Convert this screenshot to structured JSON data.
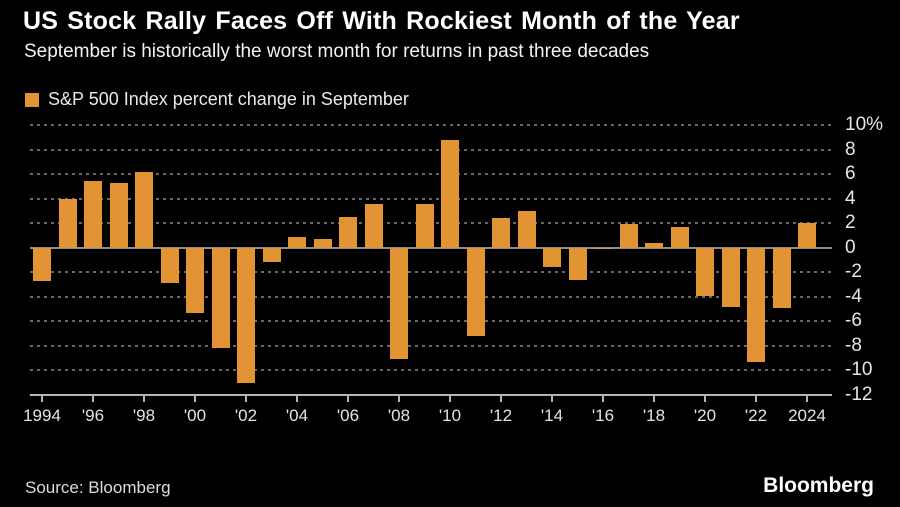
{
  "header": {
    "title": "US Stock Rally Faces Off With Rockiest Month of the Year",
    "subtitle": "September is historically the worst month for returns in past three decades"
  },
  "legend": {
    "label": "S&P 500 Index percent change in September"
  },
  "chart_data": {
    "type": "bar",
    "title": "S&P 500 Index percent change in September",
    "x": [
      1994,
      1995,
      1996,
      1997,
      1998,
      1999,
      2000,
      2001,
      2002,
      2003,
      2004,
      2005,
      2006,
      2007,
      2008,
      2009,
      2010,
      2011,
      2012,
      2013,
      2014,
      2015,
      2016,
      2017,
      2018,
      2019,
      2020,
      2021,
      2022,
      2023,
      2024
    ],
    "values": [
      -2.7,
      4.0,
      5.4,
      5.3,
      6.2,
      -2.9,
      -5.3,
      -8.2,
      -11.0,
      -1.2,
      0.9,
      0.7,
      2.5,
      3.6,
      -9.1,
      3.6,
      8.8,
      -7.2,
      2.4,
      3.0,
      -1.6,
      -2.6,
      -0.1,
      1.9,
      0.4,
      1.7,
      -3.9,
      -4.8,
      -9.3,
      -4.9,
      2.0
    ],
    "ylabel": "percent",
    "ylim": [
      -12,
      10
    ],
    "ytick_values": [
      10,
      8,
      6,
      4,
      2,
      0,
      -2,
      -4,
      -6,
      -8,
      -10,
      -12
    ],
    "ytick_labels": [
      "10%",
      "8",
      "6",
      "4",
      "2",
      "0",
      "-2",
      "-4",
      "-6",
      "-8",
      "-10",
      "-12"
    ],
    "xtick_indices": [
      0,
      2,
      4,
      6,
      8,
      10,
      12,
      14,
      16,
      18,
      20,
      22,
      24,
      26,
      28,
      30
    ],
    "xtick_labels": [
      "1994",
      "'96",
      "'98",
      "'00",
      "'02",
      "'04",
      "'06",
      "'08",
      "'10",
      "'12",
      "'14",
      "'16",
      "'18",
      "'20",
      "'22",
      "2024"
    ],
    "grid": "horizontal-dashed",
    "legend_position": "top-left",
    "axis_labels_side": "right"
  },
  "colors": {
    "background": "#000000",
    "bar": "#E29435",
    "gridline": "#686868",
    "zero_line": "#8f8f8f",
    "axis_line": "#b5b5b5",
    "title_text": "#ffffff",
    "label_text": "#e3e3e3"
  },
  "footer": {
    "source": "Source: Bloomberg",
    "logo": "Bloomberg"
  }
}
